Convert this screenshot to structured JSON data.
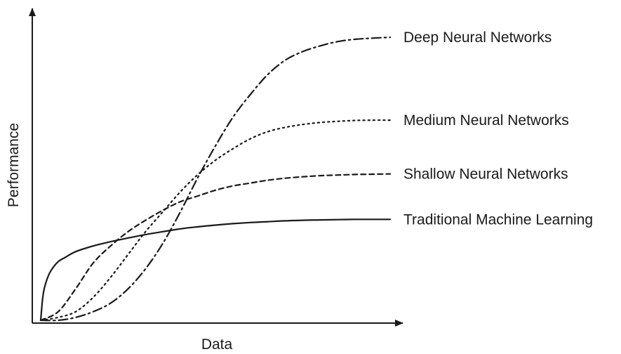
{
  "chart_data": {
    "type": "line",
    "title": "",
    "xlabel": "Data",
    "ylabel": "Performance",
    "xlim": [
      0,
      100
    ],
    "ylim": [
      0,
      100
    ],
    "grid": false,
    "ticks": false,
    "series": [
      {
        "name": "Deep Neural Networks",
        "style": "dashdot",
        "x": [
          0,
          5,
          10,
          15,
          20,
          25,
          30,
          35,
          40,
          45,
          50,
          55,
          60,
          65,
          70,
          75,
          80,
          85,
          90,
          95,
          100
        ],
        "y": [
          0,
          0,
          1,
          3,
          6,
          11,
          18,
          27,
          38,
          50,
          61,
          71,
          79,
          86,
          91,
          94,
          96,
          97.5,
          98.3,
          98.7,
          99
        ]
      },
      {
        "name": "Medium Neural Networks",
        "style": "dotted",
        "x": [
          0,
          5,
          10,
          15,
          20,
          25,
          30,
          35,
          40,
          45,
          50,
          55,
          60,
          65,
          70,
          75,
          80,
          85,
          90,
          95,
          100
        ],
        "y": [
          0,
          1,
          3,
          8,
          15,
          23,
          31,
          38,
          45,
          51,
          56,
          60,
          63.5,
          66,
          67.5,
          68.5,
          69.2,
          69.6,
          69.9,
          70,
          70
        ]
      },
      {
        "name": "Shallow Neural Networks",
        "style": "dashed",
        "x": [
          0,
          5,
          10,
          15,
          20,
          25,
          30,
          35,
          40,
          45,
          50,
          55,
          60,
          65,
          70,
          75,
          80,
          85,
          90,
          95,
          100
        ],
        "y": [
          0,
          3,
          11,
          20,
          26,
          31,
          35,
          38.5,
          41.5,
          43.5,
          45.5,
          47,
          48,
          49,
          49.7,
          50.2,
          50.6,
          50.8,
          51,
          51.1,
          51.2
        ]
      },
      {
        "name": "Traditional Machine Learning",
        "style": "solid",
        "x": [
          0,
          0.5,
          1,
          2,
          3,
          5,
          7,
          10,
          15,
          20,
          25,
          30,
          35,
          40,
          45,
          50,
          55,
          60,
          65,
          70,
          75,
          80,
          85,
          90,
          95,
          100
        ],
        "y": [
          0,
          7,
          11,
          15,
          17.5,
          20.5,
          22,
          24,
          26,
          27.5,
          28.8,
          30,
          31,
          32,
          32.7,
          33.3,
          33.8,
          34.2,
          34.5,
          34.8,
          35,
          35.1,
          35.2,
          35.3,
          35.3,
          35.3
        ]
      }
    ]
  }
}
